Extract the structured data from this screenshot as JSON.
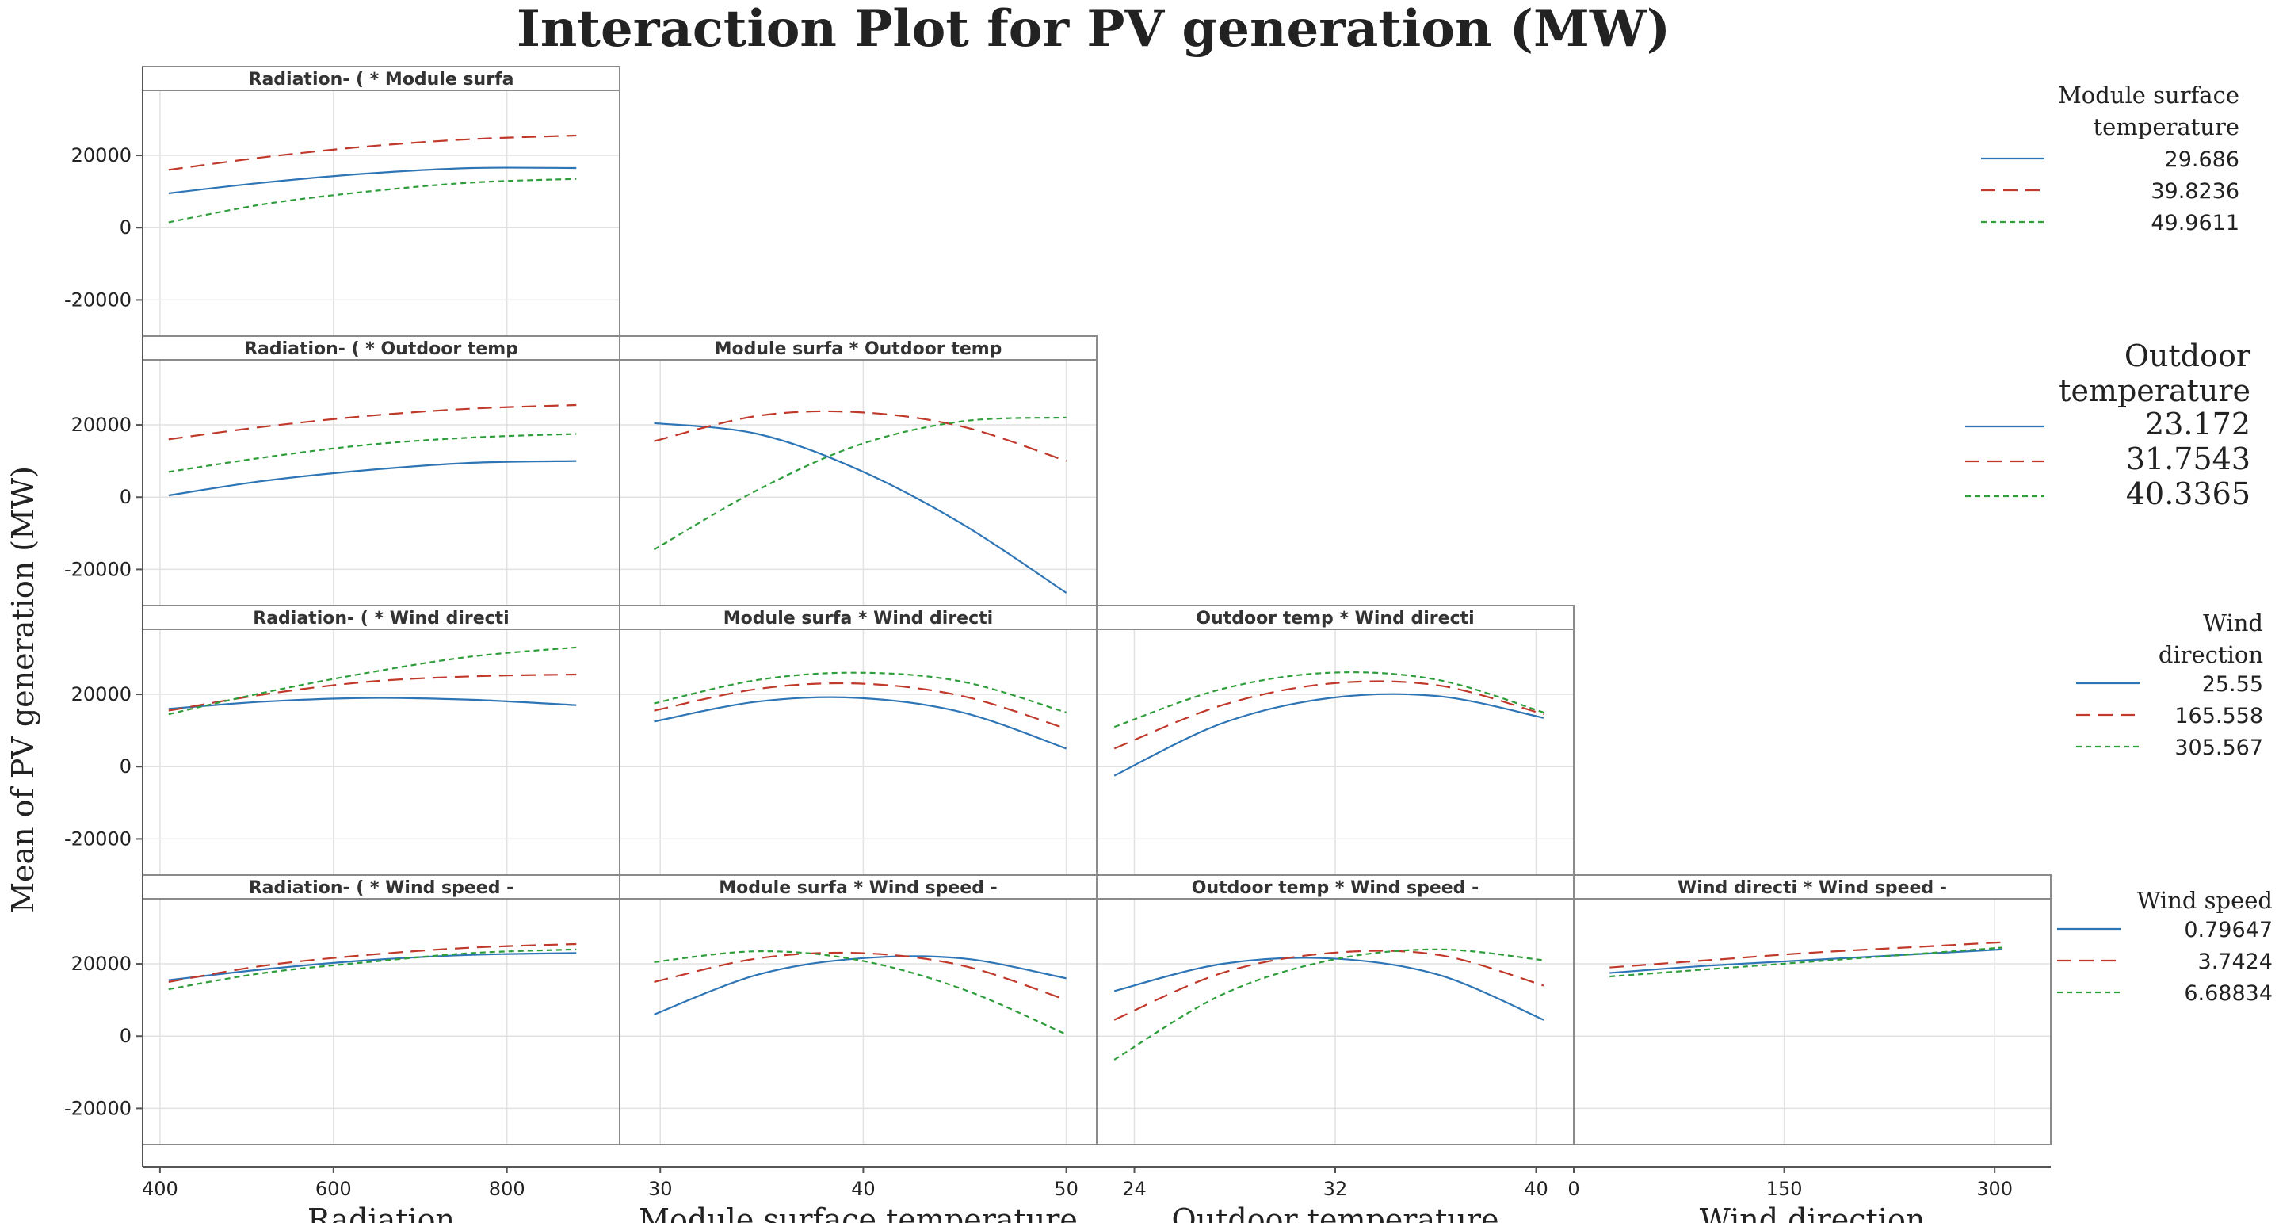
{
  "chart_data": {
    "type": "line",
    "title": "Interaction Plot for PV generation (MW)",
    "ylabel": "Mean of PV generation (MW)",
    "ylim": [
      -30000,
      38000
    ],
    "yticks": [
      -20000,
      0,
      20000
    ],
    "grid": true,
    "factors": [
      {
        "name": "Radiation",
        "short": "Radiation- (",
        "xlim": [
          380,
          930
        ],
        "ticks": [
          400,
          600,
          800
        ],
        "tick_labels": [
          "400",
          "600",
          "800"
        ]
      },
      {
        "name": "Module surface temperature",
        "short": "Module surfa",
        "xlim": [
          28,
          51.5
        ],
        "ticks": [
          30,
          40,
          50
        ],
        "tick_labels": [
          "30",
          "40",
          "50"
        ]
      },
      {
        "name": "Outdoor temperature",
        "short": "Outdoor temp",
        "xlim": [
          22.5,
          41.5
        ],
        "ticks": [
          24,
          32,
          40
        ],
        "tick_labels": [
          "24",
          "32",
          "40"
        ]
      },
      {
        "name": "Wind direction",
        "short": "Wind directi",
        "xlim": [
          0,
          340
        ],
        "ticks": [
          0,
          150,
          300
        ],
        "tick_labels": [
          "0",
          "150",
          "300"
        ]
      },
      {
        "name": "Wind speed",
        "short": "Wind speed -"
      }
    ],
    "legends": [
      {
        "title_lines": [
          "Module surface",
          "temperature"
        ],
        "levels": [
          "29.686",
          "39.8236",
          "49.9611"
        ],
        "large": false
      },
      {
        "title_lines": [
          "Outdoor",
          "temperature"
        ],
        "levels": [
          "23.172",
          "31.7543",
          "40.3365"
        ],
        "large": true
      },
      {
        "title_lines": [
          "Wind",
          "direction"
        ],
        "levels": [
          "25.55",
          "165.558",
          "305.567"
        ],
        "large": false
      },
      {
        "title_lines": [
          "Wind speed"
        ],
        "levels": [
          "0.79647",
          "3.7424",
          "6.68834"
        ],
        "large": false
      }
    ],
    "series_styles": [
      {
        "color": "#2E75B6",
        "dash": ""
      },
      {
        "color": "#C0392B",
        "dash": "18,10"
      },
      {
        "color": "#2E9E3A",
        "dash": "7,5"
      }
    ],
    "panels": [
      {
        "row": 0,
        "col": 0,
        "strip": "Radiation- ( * Module surfa",
        "x": [
          410,
          520,
          640,
          760,
          880
        ],
        "series": [
          {
            "level": "29.686",
            "values": [
              9500,
              12500,
              15000,
              16500,
              16500
            ]
          },
          {
            "level": "39.8236",
            "values": [
              16000,
              19500,
              22500,
              24500,
              25500
            ]
          },
          {
            "level": "49.9611",
            "values": [
              1500,
              6500,
              10000,
              12500,
              13500
            ]
          }
        ]
      },
      {
        "row": 1,
        "col": 0,
        "strip": "Radiation- ( * Outdoor temp",
        "x": [
          410,
          520,
          640,
          760,
          880
        ],
        "series": [
          {
            "level": "23.172",
            "values": [
              500,
              4500,
              7500,
              9500,
              10000
            ]
          },
          {
            "level": "31.7543",
            "values": [
              16000,
              19500,
              22500,
              24500,
              25500
            ]
          },
          {
            "level": "40.3365",
            "values": [
              7000,
              11000,
              14500,
              16500,
              17500
            ]
          }
        ]
      },
      {
        "row": 1,
        "col": 1,
        "strip": "Module surfa * Outdoor temp",
        "x": [
          29.7,
          34.8,
          39.8,
          44.9,
          50
        ],
        "series": [
          {
            "level": "23.172",
            "values": [
              20500,
              17500,
              7500,
              -7500,
              -26500
            ]
          },
          {
            "level": "31.7543",
            "values": [
              15500,
              22500,
              23500,
              19500,
              10000
            ]
          },
          {
            "level": "40.3365",
            "values": [
              -14500,
              2000,
              14500,
              21000,
              22000
            ]
          }
        ]
      },
      {
        "row": 2,
        "col": 0,
        "strip": "Radiation- ( * Wind directi",
        "x": [
          410,
          520,
          640,
          760,
          880
        ],
        "series": [
          {
            "level": "25.55",
            "values": [
              16000,
              18000,
              19000,
              18500,
              17000
            ]
          },
          {
            "level": "165.558",
            "values": [
              15500,
              20000,
              23500,
              25000,
              25500
            ]
          },
          {
            "level": "305.567",
            "values": [
              14500,
              20500,
              26000,
              30500,
              33000
            ]
          }
        ]
      },
      {
        "row": 2,
        "col": 1,
        "strip": "Module surfa * Wind directi",
        "x": [
          29.7,
          34.8,
          39.8,
          44.9,
          50
        ],
        "series": [
          {
            "level": "25.55",
            "values": [
              12500,
              18000,
              19000,
              15000,
              5000
            ]
          },
          {
            "level": "165.558",
            "values": [
              15500,
              21500,
              23000,
              19500,
              10500
            ]
          },
          {
            "level": "305.567",
            "values": [
              17500,
              24000,
              26000,
              23500,
              15000
            ]
          }
        ]
      },
      {
        "row": 2,
        "col": 2,
        "strip": "Outdoor temp * Wind directi",
        "x": [
          23.2,
          27.5,
          31.8,
          36.1,
          40.3
        ],
        "series": [
          {
            "level": "25.55",
            "values": [
              -2500,
              12000,
              19000,
              19500,
              13500
            ]
          },
          {
            "level": "165.558",
            "values": [
              5000,
              17000,
              23000,
              22500,
              14500
            ]
          },
          {
            "level": "305.567",
            "values": [
              11000,
              21500,
              26000,
              24000,
              15000
            ]
          }
        ]
      },
      {
        "row": 3,
        "col": 0,
        "strip": "Radiation- ( * Wind speed -",
        "x": [
          410,
          520,
          640,
          760,
          880
        ],
        "series": [
          {
            "level": "0.79647",
            "values": [
              15500,
              18500,
              21000,
              22500,
              23000
            ]
          },
          {
            "level": "3.7424",
            "values": [
              15000,
              19500,
              22500,
              24500,
              25500
            ]
          },
          {
            "level": "6.68834",
            "values": [
              13000,
              17500,
              20500,
              23000,
              24000
            ]
          }
        ]
      },
      {
        "row": 3,
        "col": 1,
        "strip": "Module surfa * Wind speed -",
        "x": [
          29.7,
          34.8,
          39.8,
          44.9,
          50
        ],
        "series": [
          {
            "level": "0.79647",
            "values": [
              6000,
              17000,
              21500,
              21500,
              16000
            ]
          },
          {
            "level": "3.7424",
            "values": [
              15000,
              21500,
              23000,
              19500,
              10000
            ]
          },
          {
            "level": "6.68834",
            "values": [
              20500,
              23500,
              21000,
              13000,
              500
            ]
          }
        ]
      },
      {
        "row": 3,
        "col": 2,
        "strip": "Outdoor temp * Wind speed -",
        "x": [
          23.2,
          27.5,
          31.8,
          36.1,
          40.3
        ],
        "series": [
          {
            "level": "0.79647",
            "values": [
              12500,
              20000,
              21500,
              17000,
              4500
            ]
          },
          {
            "level": "3.7424",
            "values": [
              4500,
              17500,
              23000,
              22500,
              14000
            ]
          },
          {
            "level": "6.68834",
            "values": [
              -6500,
              11500,
              21000,
              24000,
              21000
            ]
          }
        ]
      },
      {
        "row": 3,
        "col": 3,
        "strip": "Wind directi * Wind speed -",
        "x": [
          25.6,
          95.6,
          165.6,
          235.6,
          305.6
        ],
        "series": [
          {
            "level": "0.79647",
            "values": [
              17500,
              19500,
              21000,
              22500,
              24000
            ]
          },
          {
            "level": "3.7424",
            "values": [
              19000,
              21000,
              23000,
              24500,
              26000
            ]
          },
          {
            "level": "6.68834",
            "values": [
              16500,
              18500,
              20500,
              22500,
              24500
            ]
          }
        ]
      }
    ]
  }
}
